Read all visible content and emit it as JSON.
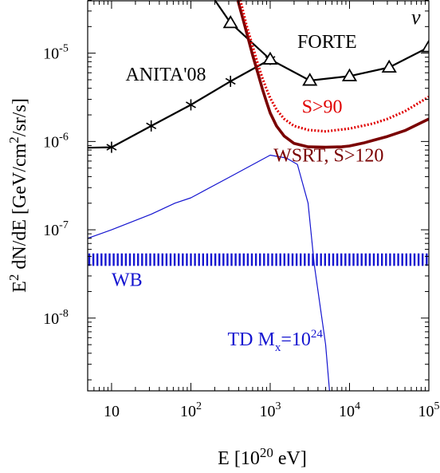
{
  "chart_data": {
    "type": "line",
    "x_log": true,
    "y_log": true,
    "xlim": [
      5,
      100000
    ],
    "ylim": [
      1.5e-09,
      4e-05
    ],
    "xlabel": "E [10^20 eV]",
    "ylabel": "E^2 dN/dE [GeV/cm^2/sr/s]",
    "x_ticks": [
      {
        "value": 10,
        "base": "10",
        "exp": ""
      },
      {
        "value": 100,
        "base": "10",
        "exp": "2"
      },
      {
        "value": 1000,
        "base": "10",
        "exp": "3"
      },
      {
        "value": 10000,
        "base": "10",
        "exp": "4"
      },
      {
        "value": 100000,
        "base": "10",
        "exp": "5"
      }
    ],
    "y_ticks": [
      {
        "value": 1e-08,
        "base": "10",
        "exp": "-8"
      },
      {
        "value": 1e-07,
        "base": "10",
        "exp": "-7"
      },
      {
        "value": 1e-06,
        "base": "10",
        "exp": "-6"
      },
      {
        "value": 1e-05,
        "base": "10",
        "exp": "-5"
      }
    ],
    "corner_label": "ν",
    "series": [
      {
        "name": "ANITA'08",
        "color": "#000000",
        "marker": "star",
        "x": [
          5,
          10,
          31.6,
          100,
          316,
          1000
        ],
        "y": [
          8.5e-07,
          8.6e-07,
          1.5e-06,
          2.6e-06,
          4.8e-06,
          8.5e-06
        ],
        "label": {
          "text": "ANITA'08",
          "x": 15,
          "y": 4.9e-06
        }
      },
      {
        "name": "FORTE",
        "color": "#000000",
        "marker": "triangle",
        "x": [
          200,
          316,
          1000,
          3162,
          10000,
          31623,
          100000
        ],
        "y": [
          4e-05,
          2.2e-05,
          8.5e-06,
          4.9e-06,
          5.5e-06,
          6.9e-06,
          1.17e-05
        ],
        "label": {
          "text": "FORTE",
          "x": 2200,
          "y": 1.15e-05
        }
      },
      {
        "name": "WSRT, S>120",
        "color": "#7a0000",
        "style": "solid",
        "x": [
          390,
          450,
          520,
          600,
          700,
          800,
          900,
          1000,
          1200,
          1500,
          2000,
          3000,
          5000,
          8000,
          10000,
          15000,
          20000,
          30000,
          50000,
          100000
        ],
        "y": [
          4e-05,
          2.5e-05,
          1.55e-05,
          9.5e-06,
          5.9e-06,
          3.9e-06,
          2.8e-06,
          2.1e-06,
          1.5e-06,
          1.15e-06,
          9.5e-07,
          8.7e-07,
          8.6e-07,
          8.7e-07,
          8.9e-07,
          9.6e-07,
          1.03e-06,
          1.14e-06,
          1.33e-06,
          1.8e-06
        ],
        "label": {
          "text": "WSRT, S>120",
          "x": 1100,
          "y": 5.9e-07
        }
      },
      {
        "name": "S>90",
        "color": "#e00000",
        "style": "dotted",
        "x": [
          420,
          500,
          600,
          700,
          800,
          900,
          1000,
          1200,
          1500,
          2000,
          3000,
          5000,
          10000,
          20000,
          30000,
          50000,
          100000
        ],
        "y": [
          4e-05,
          2.1e-05,
          1.2e-05,
          7.5e-06,
          5.2e-06,
          3.9e-06,
          3.1e-06,
          2.3e-06,
          1.8e-06,
          1.5e-06,
          1.35e-06,
          1.3e-06,
          1.4e-06,
          1.6e-06,
          1.8e-06,
          2.2e-06,
          3.2e-06
        ],
        "label": {
          "text": "S>90",
          "x": 2500,
          "y": 2.1e-06
        }
      },
      {
        "name": "TD M_x=10^24",
        "color": "#1515d0",
        "style": "thin",
        "x": [
          5,
          10,
          31.6,
          63,
          100,
          316,
          1000,
          1600,
          2200,
          3000,
          3600,
          5000,
          5600
        ],
        "y": [
          8e-08,
          1e-07,
          1.5e-07,
          2e-07,
          2.3e-07,
          4e-07,
          7e-07,
          6.5e-07,
          5.5e-07,
          2e-07,
          4e-08,
          5e-09,
          1.5e-09
        ],
        "label": {
          "text": "TD M",
          "sub": "x",
          "mid": "=10",
          "sup": "24",
          "x": 290,
          "y": 4.9e-09
        }
      },
      {
        "name": "WB",
        "color": "#1515d0",
        "style": "band",
        "band": [
          3.9e-08,
          5.4e-08
        ],
        "x": [
          5,
          100000
        ],
        "label": {
          "text": "WB",
          "x": 10,
          "y": 2.3e-08
        }
      }
    ]
  }
}
